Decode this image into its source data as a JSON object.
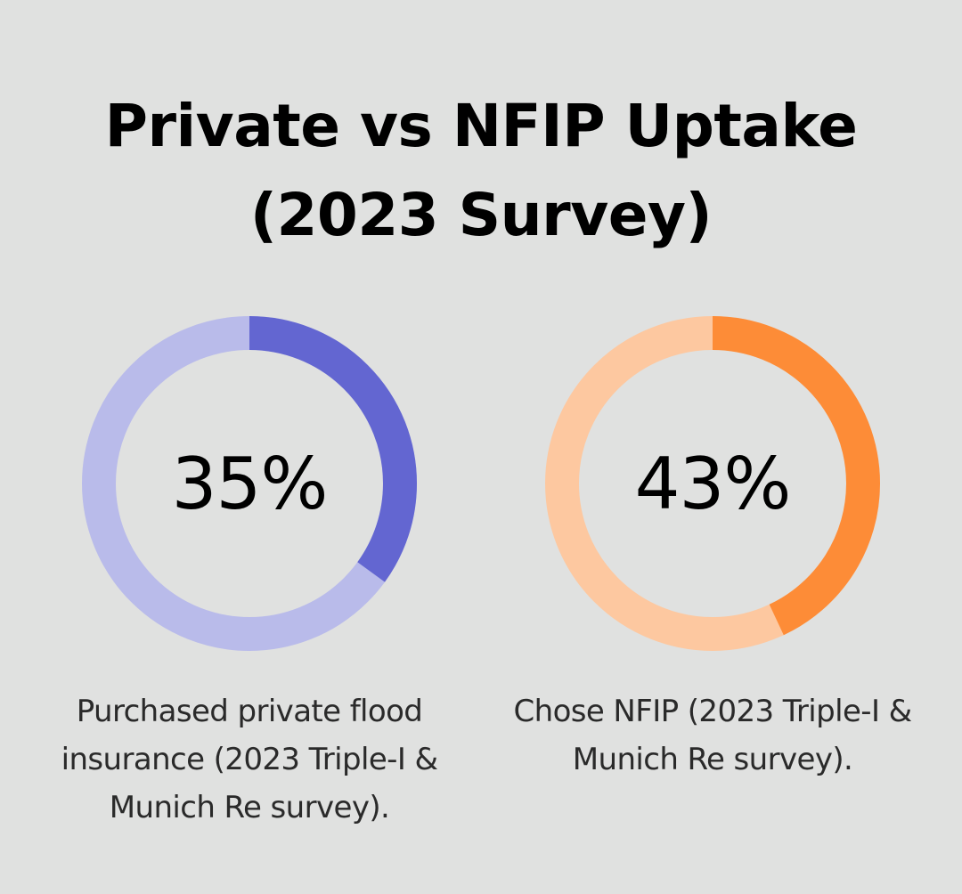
{
  "title_line1": "Private vs NFIP Uptake",
  "title_line2": "(2023 Survey)",
  "chart_data": [
    {
      "type": "pie",
      "value": 35,
      "value_label": "35%",
      "caption": "Purchased private flood insurance (2023 Triple-I & Munich Re survey).",
      "colors": {
        "filled": "#6366d1",
        "track": "#b9bbea"
      }
    },
    {
      "type": "pie",
      "value": 43,
      "value_label": "43%",
      "caption": "Chose NFIP (2023 Triple-I & Munich Re survey).",
      "colors": {
        "filled": "#fd8c37",
        "track": "#fdc8a0"
      }
    }
  ]
}
